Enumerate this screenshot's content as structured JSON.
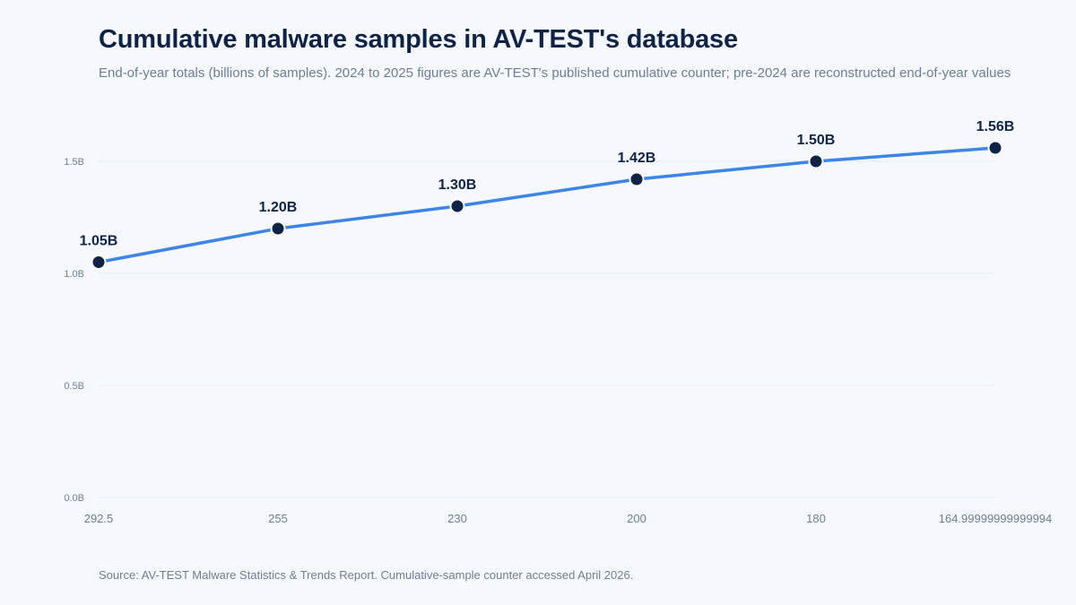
{
  "chart_data": {
    "type": "line",
    "title": "Cumulative malware samples in AV-TEST's database",
    "subtitle": "End-of-year totals (billions of samples). 2024 to 2025 figures are AV-TEST's published cumulative counter; pre-2024 are reconstructed end-of-year values",
    "source": "Source: AV-TEST Malware Statistics & Trends Report. Cumulative-sample counter accessed April 2026.",
    "x": [
      "292.5",
      "255",
      "230",
      "200",
      "180",
      "164.99999999999994"
    ],
    "values": [
      1.05,
      1.2,
      1.3,
      1.42,
      1.5,
      1.56
    ],
    "data_labels": [
      "1.05B",
      "1.20B",
      "1.30B",
      "1.42B",
      "1.50B",
      "1.56B"
    ],
    "y_ticks": [
      {
        "value": 0.0,
        "label": "0.0B"
      },
      {
        "value": 0.5,
        "label": "0.5B"
      },
      {
        "value": 1.0,
        "label": "1.0B"
      },
      {
        "value": 1.5,
        "label": "1.5B"
      }
    ],
    "ylim": [
      0,
      1.5
    ],
    "xlabel": "",
    "ylabel": "",
    "grid": true,
    "legend": "none",
    "colors": {
      "line": "#3d85e6",
      "marker": "#0f2346",
      "marker_stroke": "#ffffff",
      "grid": "#e4eaf2"
    }
  }
}
